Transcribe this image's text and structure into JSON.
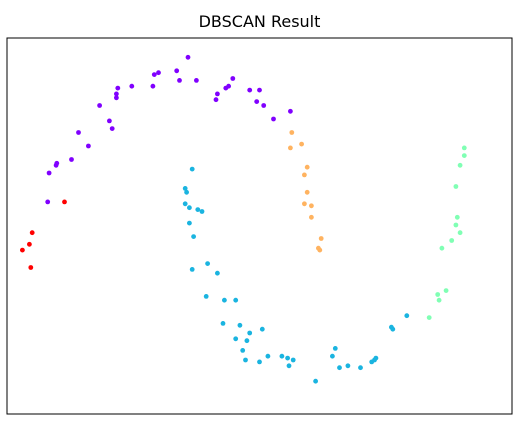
{
  "chart_data": {
    "type": "scatter",
    "title": "DBSCAN Result",
    "xlabel": "",
    "ylabel": "",
    "grid": false,
    "legend": "none",
    "axes_visible": false,
    "xlim": [
      -1.3,
      2.3
    ],
    "ylim": [
      -0.7,
      1.25
    ],
    "colors": {
      "purple": "#8000ff",
      "red": "#ff0000",
      "orange": "#ffb360",
      "cyan": "#1ab4e0",
      "green": "#80ffb4"
    },
    "series": [
      {
        "color": "purple",
        "points": [
          [
            -1.01,
            0.4
          ],
          [
            -1.0,
            0.55
          ],
          [
            -0.95,
            0.59
          ],
          [
            -0.945,
            0.6
          ],
          [
            -0.84,
            0.62
          ],
          [
            -0.79,
            0.76
          ],
          [
            -0.72,
            0.69
          ],
          [
            -0.64,
            0.9
          ],
          [
            -0.57,
            0.82
          ],
          [
            -0.55,
            0.78
          ],
          [
            -0.52,
            0.94
          ],
          [
            -0.52,
            0.96
          ],
          [
            -0.51,
            0.99
          ],
          [
            -0.41,
            1.0
          ],
          [
            -0.25,
            1.06
          ],
          [
            -0.26,
            1.0
          ],
          [
            -0.22,
            1.07
          ],
          [
            -0.09,
            1.08
          ],
          [
            -0.07,
            1.03
          ],
          [
            -0.01,
            1.15
          ],
          [
            0.05,
            1.03
          ],
          [
            0.19,
            0.93
          ],
          [
            0.2,
            0.96
          ],
          [
            0.26,
            0.99
          ],
          [
            0.28,
            1.0
          ],
          [
            0.31,
            1.04
          ],
          [
            0.43,
            0.98
          ],
          [
            0.48,
            0.92
          ],
          [
            0.5,
            0.98
          ],
          [
            0.53,
            0.9
          ],
          [
            0.6,
            0.83
          ],
          [
            0.72,
            0.87
          ]
        ]
      },
      {
        "color": "red",
        "points": [
          [
            -1.12,
            0.24
          ],
          [
            -1.14,
            0.18
          ],
          [
            -1.19,
            0.15
          ],
          [
            -1.13,
            0.06
          ],
          [
            -0.89,
            0.4
          ]
        ]
      },
      {
        "color": "orange",
        "points": [
          [
            0.73,
            0.76
          ],
          [
            0.72,
            0.68
          ],
          [
            0.8,
            0.7
          ],
          [
            0.84,
            0.58
          ],
          [
            0.82,
            0.54
          ],
          [
            0.84,
            0.45
          ],
          [
            0.82,
            0.39
          ],
          [
            0.87,
            0.38
          ],
          [
            0.87,
            0.32
          ],
          [
            0.94,
            0.21
          ],
          [
            0.92,
            0.16
          ],
          [
            0.93,
            0.15
          ]
        ]
      },
      {
        "color": "cyan",
        "points": [
          [
            0.02,
            0.57
          ],
          [
            -0.03,
            0.47
          ],
          [
            -0.02,
            0.45
          ],
          [
            -0.03,
            0.39
          ],
          [
            0.0,
            0.37
          ],
          [
            0.06,
            0.36
          ],
          [
            0.09,
            0.35
          ],
          [
            0.0,
            0.29
          ],
          [
            0.03,
            0.22
          ],
          [
            0.13,
            0.08
          ],
          [
            0.02,
            0.05
          ],
          [
            0.2,
            0.03
          ],
          [
            0.12,
            -0.09
          ],
          [
            0.25,
            -0.11
          ],
          [
            0.33,
            -0.11
          ],
          [
            0.24,
            -0.23
          ],
          [
            0.36,
            -0.24
          ],
          [
            0.43,
            -0.28
          ],
          [
            0.41,
            -0.32
          ],
          [
            0.38,
            -0.37
          ],
          [
            0.33,
            -0.31
          ],
          [
            0.52,
            -0.26
          ],
          [
            0.5,
            -0.43
          ],
          [
            0.4,
            -0.42
          ],
          [
            0.56,
            -0.4
          ],
          [
            0.66,
            -0.4
          ],
          [
            0.7,
            -0.41
          ],
          [
            0.71,
            -0.45
          ],
          [
            0.74,
            -0.42
          ],
          [
            0.9,
            -0.53
          ],
          [
            1.04,
            -0.36
          ],
          [
            1.02,
            -0.4
          ],
          [
            1.07,
            -0.46
          ],
          [
            1.13,
            -0.45
          ],
          [
            1.22,
            -0.46
          ],
          [
            1.3,
            -0.43
          ],
          [
            1.32,
            -0.42
          ],
          [
            1.33,
            -0.41
          ],
          [
            1.44,
            -0.25
          ],
          [
            1.45,
            -0.26
          ],
          [
            1.55,
            -0.19
          ]
        ]
      },
      {
        "color": "green",
        "points": [
          [
            1.71,
            -0.2
          ],
          [
            1.77,
            -0.08
          ],
          [
            1.78,
            -0.11
          ],
          [
            1.83,
            -0.06
          ],
          [
            1.8,
            0.16
          ],
          [
            1.87,
            0.2
          ],
          [
            1.9,
            0.28
          ],
          [
            1.91,
            0.32
          ],
          [
            1.93,
            0.24
          ],
          [
            1.9,
            0.48
          ],
          [
            1.93,
            0.59
          ],
          [
            1.96,
            0.64
          ],
          [
            1.96,
            0.68
          ]
        ]
      }
    ]
  }
}
